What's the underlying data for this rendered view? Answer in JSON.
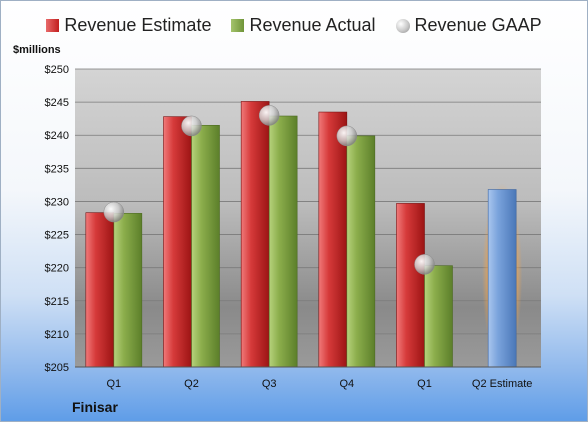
{
  "chart_data": {
    "type": "bar",
    "title": "",
    "ylabel": "$millions",
    "xlabel": "",
    "ylim": [
      205,
      250
    ],
    "ytick_step": 5,
    "ytick_prefix": "$",
    "grid": true,
    "legend_position": "top",
    "categories": [
      "Q1",
      "Q2",
      "Q3",
      "Q4",
      "Q1",
      "Q2 Estimate"
    ],
    "series": [
      {
        "name": "Revenue Estimate",
        "kind": "bar",
        "color": "#c62828",
        "values": [
          228.3,
          242.8,
          245.1,
          243.5,
          229.7,
          null
        ]
      },
      {
        "name": "Revenue Actual",
        "kind": "bar",
        "color": "#7a9e3f",
        "values": [
          228.2,
          241.5,
          242.9,
          239.9,
          220.3,
          null
        ]
      },
      {
        "name": "Revenue GAAP",
        "kind": "marker",
        "color": "#bdbdbd",
        "values": [
          228.4,
          241.4,
          243.0,
          239.9,
          220.5,
          null
        ]
      },
      {
        "name": "Q2 Estimate",
        "kind": "bar",
        "color": "#6d99d6",
        "values": [
          null,
          null,
          null,
          null,
          null,
          231.8
        ]
      }
    ],
    "highlight_color": "#f5a54a"
  },
  "footer": {
    "company": "Finisar"
  }
}
